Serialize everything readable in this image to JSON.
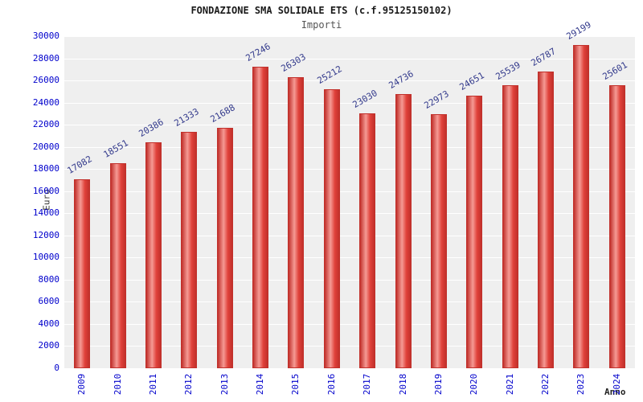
{
  "title": "FONDAZIONE SMA SOLIDALE ETS (c.f.95125150102)",
  "subtitle": "Importi",
  "chart_data": {
    "type": "bar",
    "title": "FONDAZIONE SMA SOLIDALE ETS (c.f.95125150102)",
    "subtitle": "Importi",
    "categories": [
      "2009",
      "2010",
      "2011",
      "2012",
      "2013",
      "2014",
      "2015",
      "2016",
      "2017",
      "2018",
      "2019",
      "2020",
      "2021",
      "2022",
      "2023",
      "2024"
    ],
    "values": [
      17082,
      18551,
      20386,
      21333,
      21688,
      27246,
      26303,
      25212,
      23030,
      24736,
      22973,
      24651,
      25539,
      26787,
      29199,
      25601
    ],
    "xlabel": "Anno",
    "ylabel": "Euro",
    "ylim": [
      0,
      30000
    ],
    "ytick_step": 2000,
    "grid": true,
    "legend": "none",
    "plot_background": "#efefef",
    "bar_color": "#e0413a",
    "bar_edge_color": "#c1302b",
    "bar_highlight_color": "#f59a94",
    "tick_label_color": "#0000cc",
    "value_label_color": "#333a8c"
  }
}
